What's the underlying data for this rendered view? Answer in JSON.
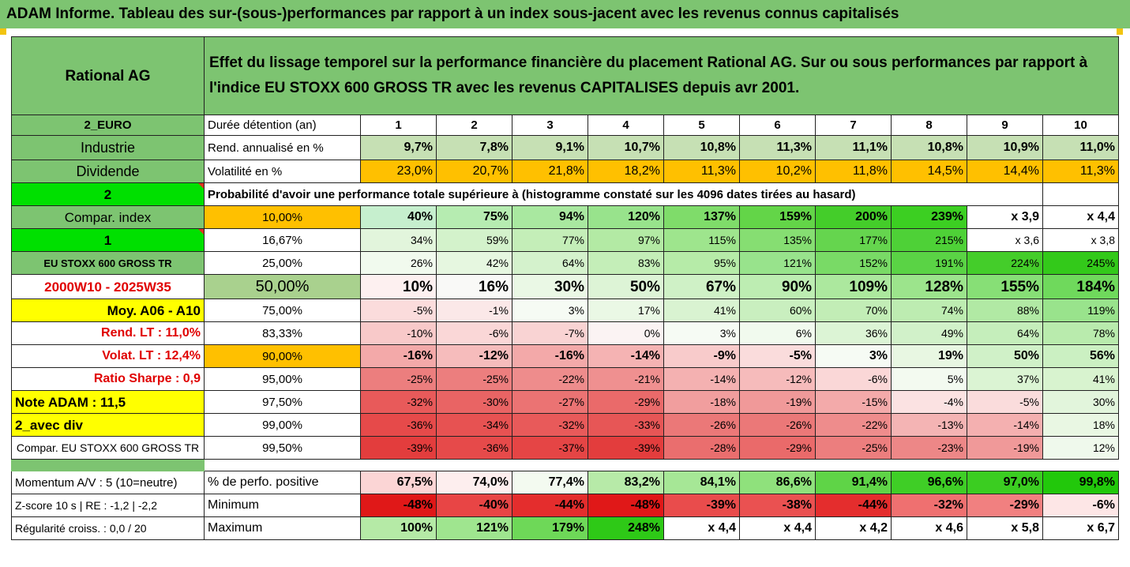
{
  "title": "ADAM Informe. Tableau des sur-(sous-)performances par rapport à un index sous-jacent avec les revenus connus capitalisés",
  "company": "Rational AG",
  "header_text": "Effet du lissage temporel sur la performance financière du placement Rational AG. Sur ou sous performances par rapport à l'indice EU STOXX 600 GROSS TR avec les revenus CAPITALISES depuis avr 2001.",
  "left_labels": {
    "currency": "2_EURO",
    "sector": "Industrie",
    "dividend": "Dividende",
    "two": "2",
    "compar_index": "Compar. index",
    "one": "1",
    "index_name": "EU STOXX 600 GROSS TR",
    "period": "2000W10 - 2025W35",
    "moy": "Moy. A06 - A10",
    "rend_lt": "Rend. LT :   11,0%",
    "volat_lt": "Volat. LT :   12,4%",
    "sharpe": "Ratio Sharpe :    0,9",
    "note": "Note ADAM : 11,5",
    "avec_div": "2_avec div",
    "compar_eu": "Compar. EU STOXX 600 GROSS TR",
    "momentum": "Momentum A/V : 5 (10=neutre)",
    "zscore": "Z-score 10 s  | RE : -1,2 | -2,2",
    "regularite": "Régularité croiss. : 0,0 / 20"
  },
  "row_labels": {
    "holding": "Durée détention (an)",
    "rend": "Rend. annualisé en %",
    "volat": "Volatilité en %",
    "prob_header": "Probabilité d'avoir une performance totale supérieure à (histogramme constaté sur les 4096 dates tirées au hasard)",
    "positive": "% de perfo. positive",
    "minimum": "Minimum",
    "maximum": "Maximum"
  },
  "years": [
    "1",
    "2",
    "3",
    "4",
    "5",
    "6",
    "7",
    "8",
    "9",
    "10"
  ],
  "rend": [
    "9,7%",
    "7,8%",
    "9,1%",
    "10,7%",
    "10,8%",
    "11,3%",
    "11,1%",
    "10,8%",
    "10,9%",
    "11,0%"
  ],
  "volat": [
    "23,0%",
    "20,7%",
    "21,8%",
    "18,2%",
    "11,3%",
    "10,2%",
    "11,8%",
    "14,5%",
    "14,4%",
    "11,3%"
  ],
  "prob_rows": [
    {
      "pct": "10,00%",
      "values": [
        "40%",
        "75%",
        "94%",
        "120%",
        "137%",
        "159%",
        "200%",
        "239%",
        "x 3,9",
        "x 4,4"
      ],
      "colors": [
        "#c6efce",
        "#b6ecb1",
        "#a9e8a0",
        "#98e38c",
        "#7fdc6a",
        "#63d548",
        "#44cd2a",
        "#3ccf22",
        "#ffffff",
        "#ffffff"
      ]
    },
    {
      "pct": "16,67%",
      "values": [
        "34%",
        "59%",
        "77%",
        "97%",
        "115%",
        "135%",
        "177%",
        "215%",
        "x 3,6",
        "x 3,8"
      ],
      "colors": [
        "#e2f5dc",
        "#d3f2cb",
        "#c4eeb8",
        "#b3eaa4",
        "#9ee58d",
        "#86de72",
        "#65d54e",
        "#4ed137",
        "#ffffff",
        "#ffffff"
      ]
    },
    {
      "pct": "25,00%",
      "values": [
        "26%",
        "42%",
        "64%",
        "83%",
        "95%",
        "121%",
        "152%",
        "191%",
        "224%",
        "245%"
      ],
      "colors": [
        "#f1faee",
        "#e6f7e0",
        "#d4f2cc",
        "#c4eeb8",
        "#b6eba8",
        "#98e38c",
        "#79da66",
        "#5ad345",
        "#44cd2a",
        "#33c91a"
      ]
    },
    {
      "pct": "50,00%",
      "values": [
        "10%",
        "16%",
        "30%",
        "50%",
        "67%",
        "90%",
        "109%",
        "128%",
        "155%",
        "184%"
      ],
      "colors": [
        "#fdf0f0",
        "#f9f9f7",
        "#eaf8e5",
        "#ddf4d6",
        "#cff1c6",
        "#bdedb2",
        "#acE89e",
        "#9ce48c",
        "#87df76",
        "#6fd95c"
      ]
    },
    {
      "pct": "75,00%",
      "values": [
        "-5%",
        "-1%",
        "3%",
        "17%",
        "41%",
        "60%",
        "70%",
        "74%",
        "88%",
        "119%"
      ],
      "colors": [
        "#fbdcdc",
        "#fbe8e8",
        "#f6fbf4",
        "#eaf8e5",
        "#d9f3d1",
        "#c9efbf",
        "#c2edb6",
        "#bdecb1",
        "#b1e9a4",
        "#99e38c"
      ]
    },
    {
      "pct": "83,33%",
      "values": [
        "-10%",
        "-6%",
        "-7%",
        "0%",
        "3%",
        "6%",
        "36%",
        "49%",
        "64%",
        "78%"
      ],
      "colors": [
        "#f8c9c9",
        "#fad7d7",
        "#f9d3d3",
        "#fbf3f3",
        "#f6fbf4",
        "#f1faee",
        "#dcf4d5",
        "#d1f1c9",
        "#c5eebb",
        "#b9ebad"
      ]
    },
    {
      "pct": "90,00%",
      "values": [
        "-16%",
        "-12%",
        "-16%",
        "-14%",
        "-9%",
        "-5%",
        "3%",
        "19%",
        "50%",
        "56%"
      ],
      "colors": [
        "#f3a9a9",
        "#f6bcbc",
        "#f3a9a9",
        "#f5b3b3",
        "#f8cbcb",
        "#fadcdc",
        "#f6fbf4",
        "#e8f7e2",
        "#d0f1c8",
        "#cbf0c2"
      ]
    },
    {
      "pct": "95,00%",
      "values": [
        "-25%",
        "-25%",
        "-22%",
        "-21%",
        "-14%",
        "-12%",
        "-6%",
        "5%",
        "37%",
        "41%"
      ],
      "colors": [
        "#ec7e7e",
        "#ec7e7e",
        "#ee8c8c",
        "#ef9090",
        "#f4b1b1",
        "#f6bbbb",
        "#fad7d7",
        "#f3faf0",
        "#dbf4d3",
        "#d8f3cf"
      ]
    },
    {
      "pct": "97,50%",
      "values": [
        "-32%",
        "-30%",
        "-27%",
        "-29%",
        "-18%",
        "-19%",
        "-15%",
        "-4%",
        "-5%",
        "30%"
      ],
      "colors": [
        "#e85a5a",
        "#e96464",
        "#eb7373",
        "#ea6a6a",
        "#f19e9e",
        "#f09999",
        "#f3aaaa",
        "#fbe2e2",
        "#fadcdc",
        "#e2f5dc"
      ]
    },
    {
      "pct": "99,00%",
      "values": [
        "-36%",
        "-34%",
        "-32%",
        "-33%",
        "-26%",
        "-26%",
        "-22%",
        "-13%",
        "-14%",
        "18%"
      ],
      "colors": [
        "#e64a4a",
        "#e75252",
        "#e85a5a",
        "#e75656",
        "#eb7878",
        "#eb7878",
        "#ee8c8c",
        "#f4b4b4",
        "#f4b0b0",
        "#e9f7e3"
      ]
    },
    {
      "pct": "99,50%",
      "values": [
        "-39%",
        "-36%",
        "-37%",
        "-39%",
        "-28%",
        "-29%",
        "-25%",
        "-23%",
        "-19%",
        "12%"
      ],
      "colors": [
        "#e33d3d",
        "#e64a4a",
        "#e54545",
        "#e33d3d",
        "#ea6e6e",
        "#ea6a6a",
        "#ec7e7e",
        "#ed8787",
        "#f09999",
        "#eff9ec"
      ]
    }
  ],
  "positive": [
    "67,5%",
    "74,0%",
    "77,4%",
    "83,2%",
    "84,1%",
    "86,6%",
    "91,4%",
    "96,6%",
    "97,0%",
    "99,8%"
  ],
  "positive_colors": [
    "#fbd5d5",
    "#fdeeee",
    "#f3faf0",
    "#b7eaa8",
    "#a6e796",
    "#8fe17c",
    "#5fd447",
    "#3fce26",
    "#3bcd21",
    "#22c80b"
  ],
  "minimum": [
    "-48%",
    "-40%",
    "-44%",
    "-48%",
    "-39%",
    "-38%",
    "-44%",
    "-32%",
    "-29%",
    "-6%"
  ],
  "minimum_colors": [
    "#e01818",
    "#e84545",
    "#e42d2d",
    "#e01818",
    "#e94c4c",
    "#ea5151",
    "#e42d2d",
    "#ef7070",
    "#f18080",
    "#fde6e6"
  ],
  "maximum": [
    "100%",
    "121%",
    "179%",
    "248%",
    "x 4,4",
    "x 4,4",
    "x 4,2",
    "x 4,6",
    "x 5,8",
    "x 6,7"
  ],
  "maximum_colors": [
    "#b5eaa6",
    "#9fe58f",
    "#6ed858",
    "#2ec917",
    "#ffffff",
    "#ffffff",
    "#ffffff",
    "#ffffff",
    "#ffffff",
    "#ffffff"
  ]
}
